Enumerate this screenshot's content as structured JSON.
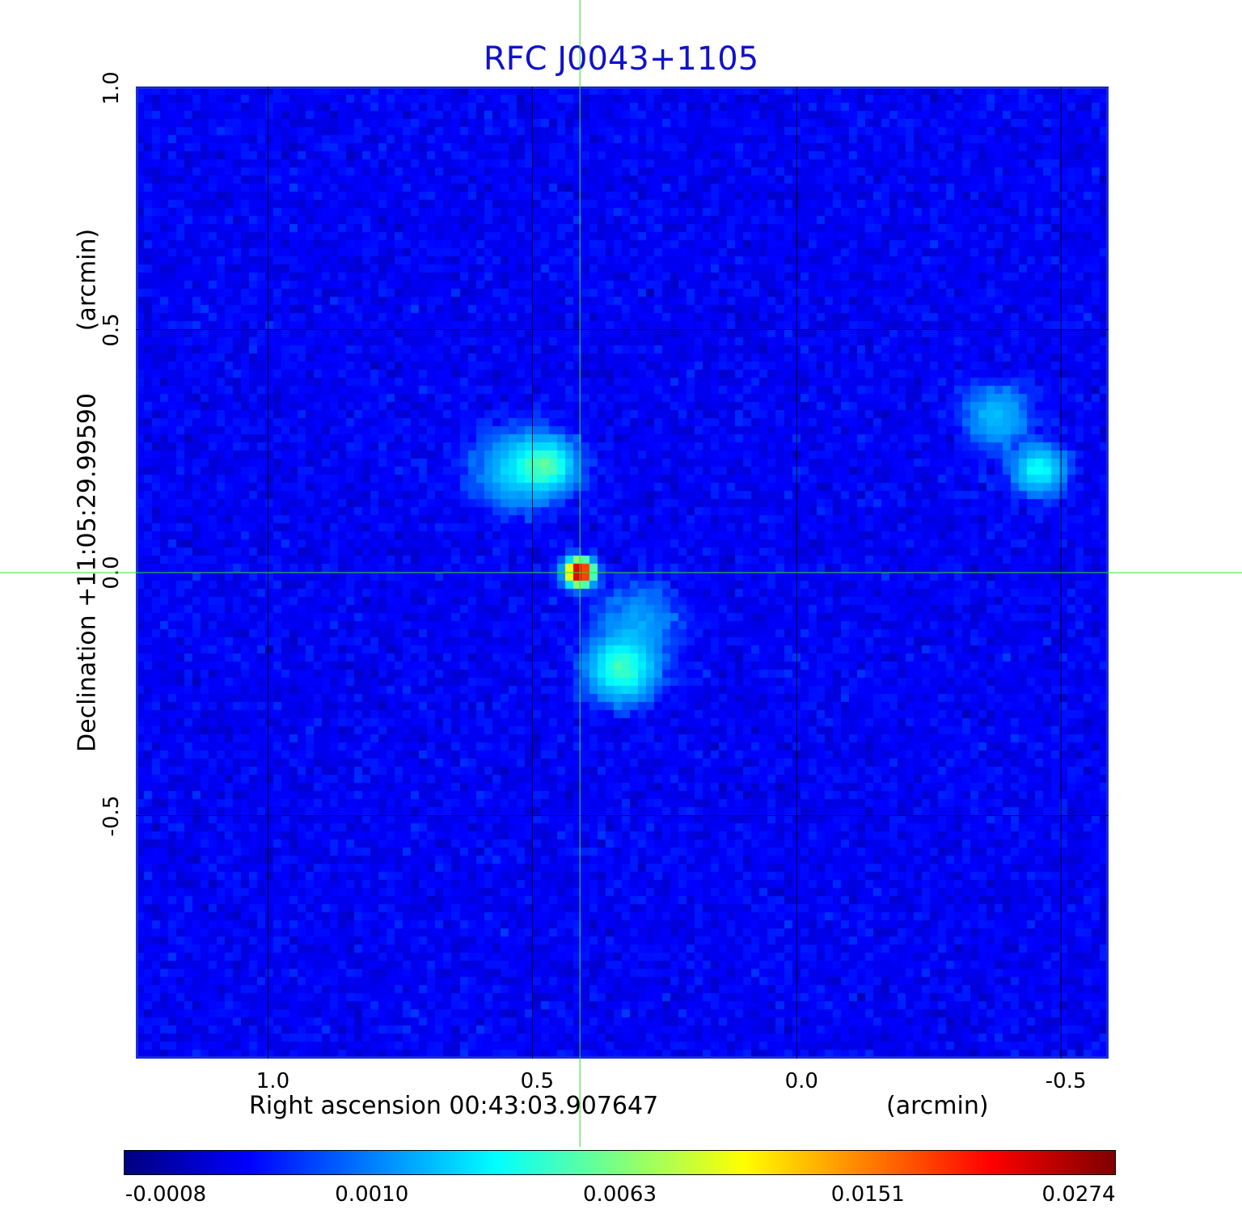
{
  "chart_data": {
    "type": "heatmap",
    "title": "RFC J0043+1105",
    "xlabel": "Right ascension  00:43:03.907647",
    "xlabel_unit": "(arcmin)",
    "ylabel": "Declination  +11:05:29.99590",
    "ylabel_unit": "(arcmin)",
    "xlim": [
      1.25,
      -0.59
    ],
    "ylim": [
      -1.0,
      1.0
    ],
    "x_ticks": [
      {
        "value": 1.0,
        "label": "1.0"
      },
      {
        "value": 0.5,
        "label": "0.5"
      },
      {
        "value": 0.0,
        "label": "0.0"
      },
      {
        "value": -0.5,
        "label": "-0.5"
      }
    ],
    "y_ticks": [
      {
        "value": 1.0,
        "label": "1.0"
      },
      {
        "value": 0.5,
        "label": "0.5"
      },
      {
        "value": 0.0,
        "label": "0.0"
      },
      {
        "value": -0.5,
        "label": "-0.5"
      }
    ],
    "grid": true,
    "crosshair": {
      "x": 0.41,
      "y": 0.0
    },
    "colormap": "jet",
    "colorbar": {
      "ticks": [
        "-0.0008",
        "0.0010",
        "0.0063",
        "0.0151",
        "0.0274"
      ],
      "min": -0.0008,
      "max": 0.0274
    },
    "sources": [
      {
        "x": 0.41,
        "y": 0.0,
        "peak": 0.0274,
        "width": 0.015
      },
      {
        "x": 0.47,
        "y": 0.22,
        "peak": 0.0042,
        "width": 0.035
      },
      {
        "x": 0.53,
        "y": 0.21,
        "peak": 0.0025,
        "width": 0.05
      },
      {
        "x": 0.33,
        "y": -0.2,
        "peak": 0.0048,
        "width": 0.04
      },
      {
        "x": 0.3,
        "y": -0.1,
        "peak": 0.0015,
        "width": 0.05
      },
      {
        "x": -0.46,
        "y": 0.21,
        "peak": 0.0038,
        "width": 0.03
      },
      {
        "x": -0.38,
        "y": 0.32,
        "peak": 0.0022,
        "width": 0.04
      }
    ],
    "noise_level": 0.0003
  },
  "colors": {
    "title": "#1111cc",
    "crosshair": "#33dd33",
    "grid": "#000000",
    "frame": "#1b2dd8"
  }
}
